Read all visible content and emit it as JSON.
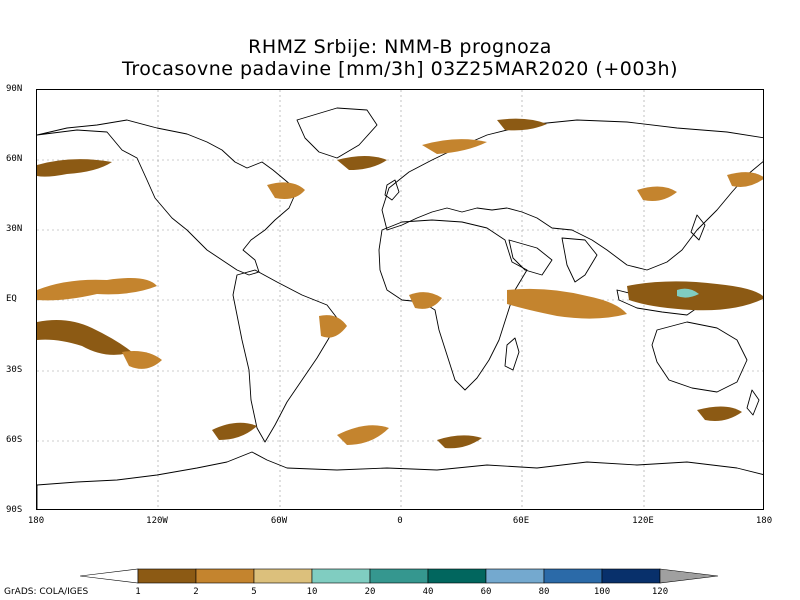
{
  "title": {
    "line1": "RHMZ Srbije: NMM-B prognoza",
    "line2": "Trocasovne padavine [mm/3h] 03Z25MAR2020 (+003h)"
  },
  "map": {
    "lat_labels": [
      "90N",
      "60N",
      "30N",
      "EQ",
      "30S",
      "60S",
      "90S"
    ],
    "lon_labels": [
      "180",
      "120W",
      "60W",
      "0",
      "60E",
      "120E",
      "180"
    ],
    "gridlines": true,
    "land_fill": "#ffffff",
    "coastline_color": "#000000",
    "grid_color": "#9a9a9a"
  },
  "colorbar": {
    "labels": [
      "1",
      "2",
      "5",
      "10",
      "20",
      "40",
      "60",
      "80",
      "100",
      "120"
    ],
    "colors": [
      "#ffffff",
      "#8c5a14",
      "#c4842e",
      "#dcc07c",
      "#80cdc1",
      "#35978f",
      "#01665e",
      "#74a9cf",
      "#2b6aa8",
      "#08306b",
      "#a0a0a0"
    ]
  },
  "precip_colors": {
    "light": "#8c5a14",
    "moderate": "#c4842e",
    "heavy": "#dcc07c",
    "very_heavy": "#80cdc1"
  },
  "credit": "GrADS: COLA/IGES"
}
